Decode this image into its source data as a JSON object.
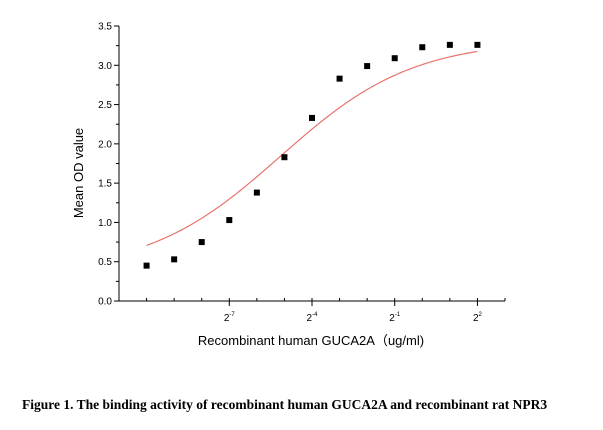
{
  "chart_data": {
    "type": "scatter",
    "xlabel": "Recombinant human GUCA2A（ug/ml)",
    "ylabel": "Mean OD value",
    "x_scale": "log2",
    "xlim": [
      -11,
      3
    ],
    "ylim": [
      0,
      3.5
    ],
    "grid": false,
    "legend": "none",
    "x_ticks": [
      {
        "base": "2",
        "exp": "-7",
        "value": -7
      },
      {
        "base": "2",
        "exp": "-4",
        "value": -4
      },
      {
        "base": "2",
        "exp": "-1",
        "value": -1
      },
      {
        "base": "2",
        "exp": "2",
        "value": 2
      }
    ],
    "y_ticks": [
      "0.0",
      "0.5",
      "1.0",
      "1.5",
      "2.0",
      "2.5",
      "3.0",
      "3.5"
    ],
    "series": [
      {
        "x": [
          -10,
          -9,
          -8,
          -7,
          -6,
          -5,
          -4,
          -3,
          -2,
          -1,
          0,
          1,
          2
        ],
        "y": [
          0.45,
          0.53,
          0.75,
          1.03,
          1.38,
          1.83,
          2.33,
          2.83,
          2.99,
          3.09,
          3.23,
          3.26,
          3.26
        ]
      }
    ],
    "fit_curve": {
      "model": "4PL",
      "bottom": 0.36,
      "top": 3.32,
      "log2_ec50": -5.15,
      "hill_slope": 0.6,
      "x_range": [
        -10,
        2
      ]
    },
    "colors": {
      "points": "#000000",
      "curve": "#e8736c",
      "axes": "#000000"
    }
  },
  "caption": "Figure 1. The binding activity of recombinant human GUCA2A and recombinant rat NPR3"
}
